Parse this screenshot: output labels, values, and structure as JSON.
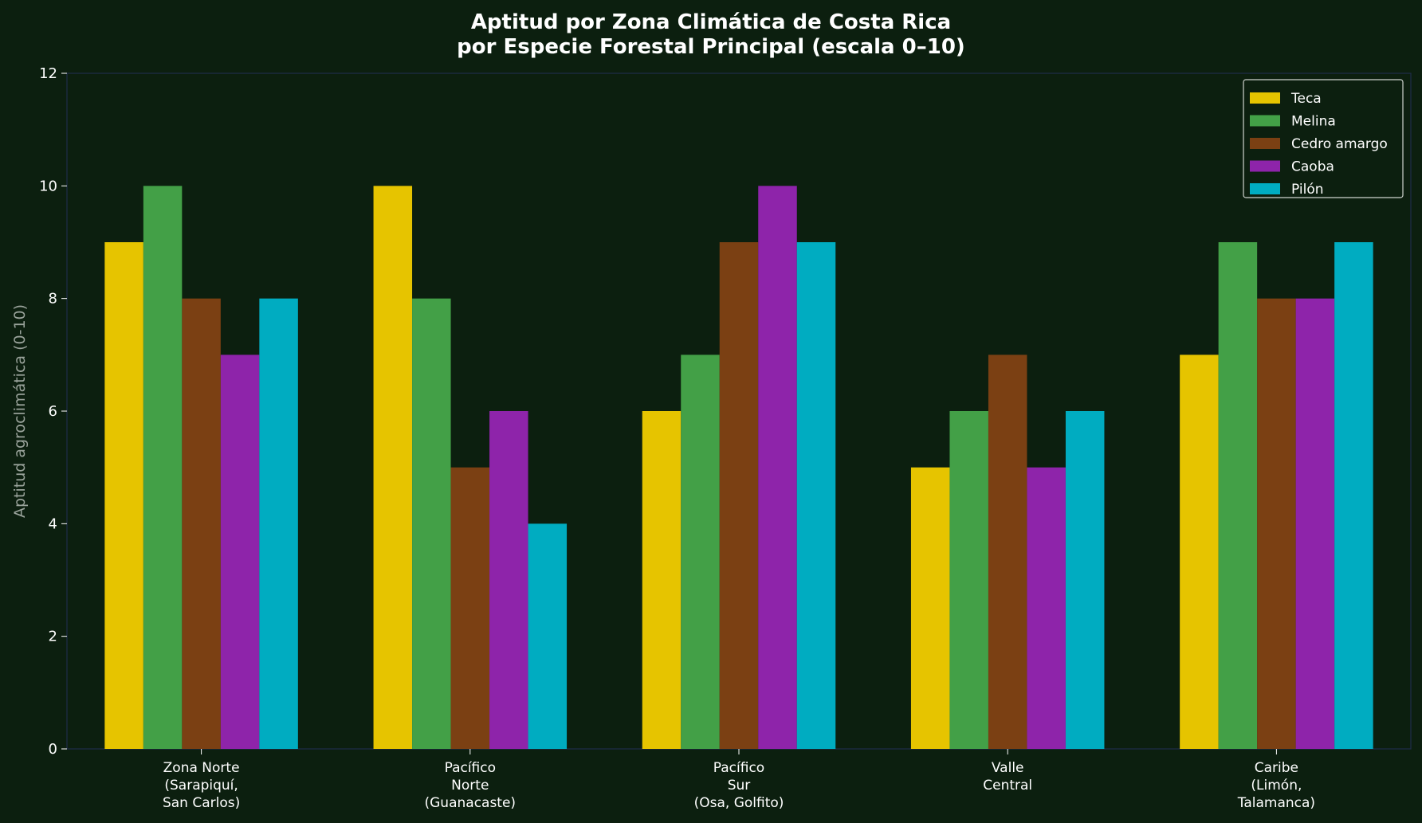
{
  "chart_data": {
    "type": "bar",
    "title": [
      "Aptitud por Zona Climática de Costa Rica",
      "por Especie Forestal Principal (escala 0–10)"
    ],
    "xlabel": "",
    "ylabel": "Aptitud agroclimática (0-10)",
    "ylim": [
      0,
      12
    ],
    "yticks": [
      0,
      2,
      4,
      6,
      8,
      10,
      12
    ],
    "categories": [
      [
        "Zona Norte",
        "(Sarapiquí,",
        "San Carlos)"
      ],
      [
        "Pacífico",
        "Norte",
        "(Guanacaste)"
      ],
      [
        "Pacífico",
        "Sur",
        "(Osa, Golfito)"
      ],
      [
        "Valle",
        "Central"
      ],
      [
        "Caribe",
        "(Limón,",
        "Talamanca)"
      ]
    ],
    "series": [
      {
        "name": "Teca",
        "color": "#e6c400",
        "values": [
          9,
          10,
          6,
          5,
          7
        ]
      },
      {
        "name": "Melina",
        "color": "#43a047",
        "values": [
          10,
          8,
          7,
          6,
          9
        ]
      },
      {
        "name": "Cedro amargo",
        "color": "#7b4013",
        "values": [
          8,
          5,
          9,
          7,
          8
        ]
      },
      {
        "name": "Caoba",
        "color": "#8e24aa",
        "values": [
          7,
          6,
          10,
          5,
          8
        ]
      },
      {
        "name": "Pilón",
        "color": "#00acc1",
        "values": [
          8,
          4,
          9,
          6,
          9
        ]
      }
    ],
    "legend": "top-right",
    "grid": false
  },
  "colors": {
    "background": "#0c1f0f",
    "axis": "#1f2d4a",
    "text": "#ffffff",
    "ylabel": "#9aa39b"
  }
}
